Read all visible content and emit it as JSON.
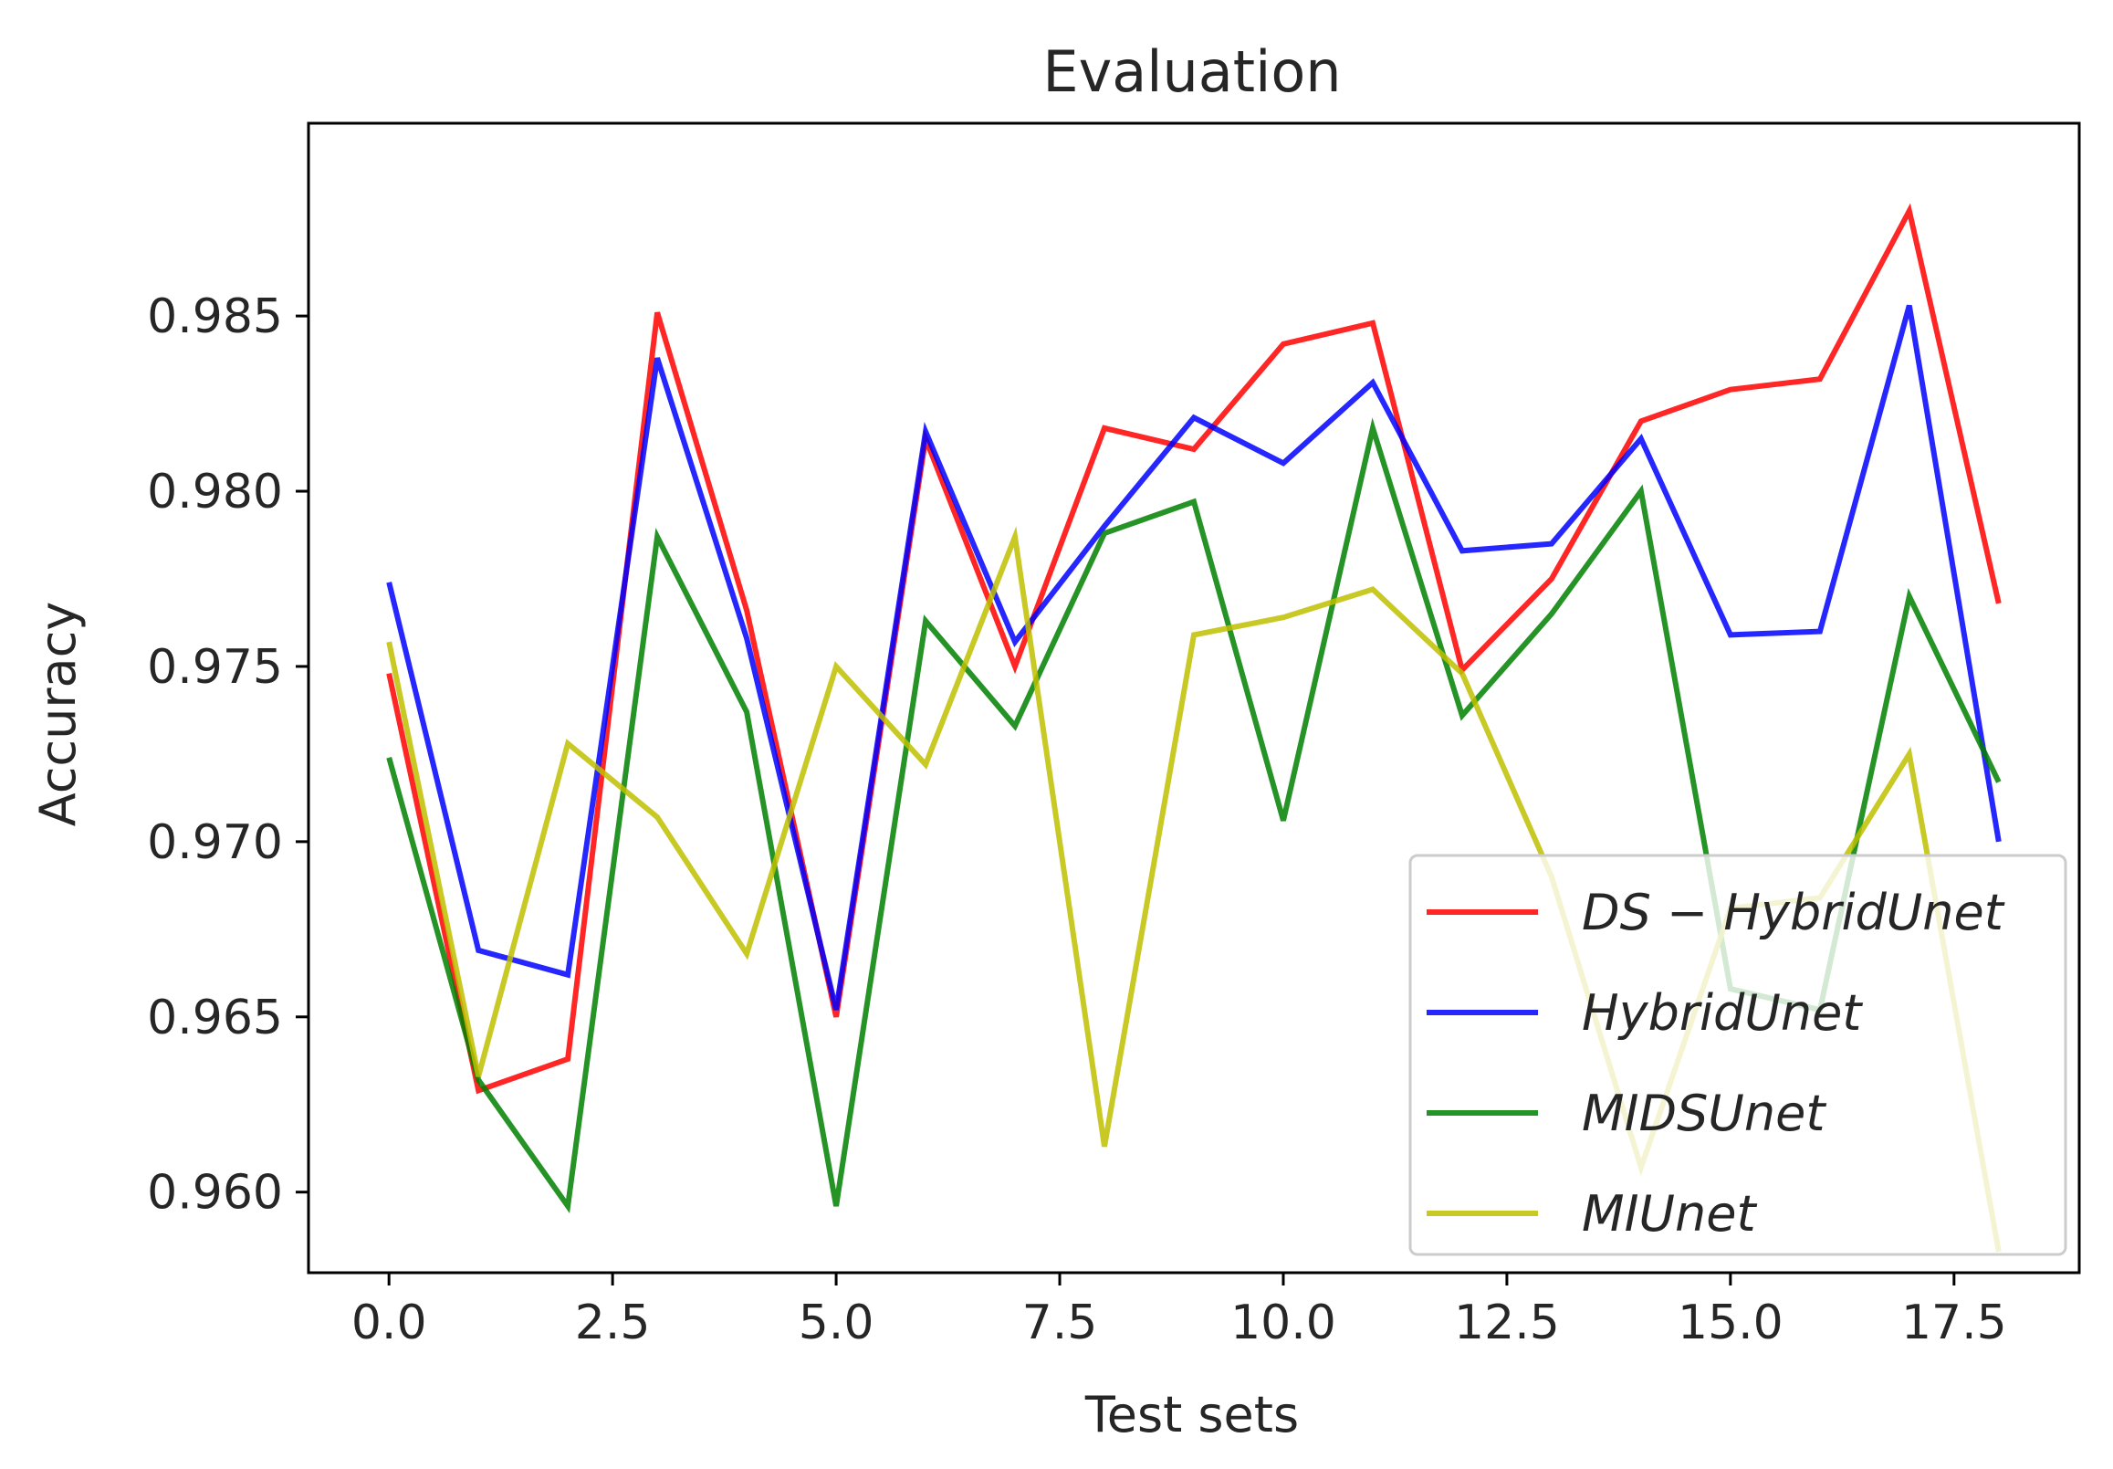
{
  "chart_data": {
    "type": "line",
    "title": "Evaluation",
    "xlabel": "Test sets",
    "ylabel": "Accuracy",
    "xlim": [
      -0.9,
      18.9
    ],
    "ylim": [
      0.9577,
      0.9905
    ],
    "xticks": [
      0.0,
      2.5,
      5.0,
      7.5,
      10.0,
      12.5,
      15.0,
      17.5
    ],
    "xtick_labels": [
      "0.0",
      "2.5",
      "5.0",
      "7.5",
      "10.0",
      "12.5",
      "15.0",
      "17.5"
    ],
    "yticks": [
      0.96,
      0.965,
      0.97,
      0.975,
      0.98,
      0.985
    ],
    "ytick_labels": [
      "0.960",
      "0.965",
      "0.970",
      "0.975",
      "0.980",
      "0.985"
    ],
    "grid": false,
    "legend_position": "lower-right",
    "x": [
      0,
      1,
      2,
      3,
      4,
      5,
      6,
      7,
      8,
      9,
      10,
      11,
      12,
      13,
      14,
      15,
      16,
      17,
      18
    ],
    "series": [
      {
        "name": "DS − HybridUnet",
        "color": "#ff0000",
        "values": [
          0.9748,
          0.9629,
          0.9638,
          0.9851,
          0.9766,
          0.965,
          0.9815,
          0.975,
          0.9818,
          0.9812,
          0.9842,
          0.9848,
          0.9749,
          0.9775,
          0.982,
          0.9829,
          0.9832,
          0.988,
          0.9768
        ]
      },
      {
        "name": "HybridUnet",
        "color": "#0000ff",
        "values": [
          0.9774,
          0.9669,
          0.9662,
          0.9838,
          0.9758,
          0.9652,
          0.9817,
          0.9757,
          0.979,
          0.9821,
          0.9808,
          0.9831,
          0.9783,
          0.9785,
          0.9815,
          0.9759,
          0.976,
          0.9853,
          0.97
        ]
      },
      {
        "name": "MIDSUnet",
        "color": "#008000",
        "values": [
          0.9724,
          0.9632,
          0.9596,
          0.9787,
          0.9737,
          0.9596,
          0.9763,
          0.9733,
          0.9788,
          0.9797,
          0.9706,
          0.9818,
          0.9736,
          0.9765,
          0.98,
          0.9658,
          0.9652,
          0.977,
          0.9717
        ]
      },
      {
        "name": "MIUnet",
        "color": "#bfbf00",
        "values": [
          0.9757,
          0.9633,
          0.9728,
          0.9707,
          0.9668,
          0.975,
          0.9722,
          0.9787,
          0.9613,
          0.9759,
          0.9764,
          0.9772,
          0.9748,
          0.969,
          0.9607,
          0.9681,
          0.9684,
          0.9725,
          0.9583
        ]
      }
    ]
  }
}
